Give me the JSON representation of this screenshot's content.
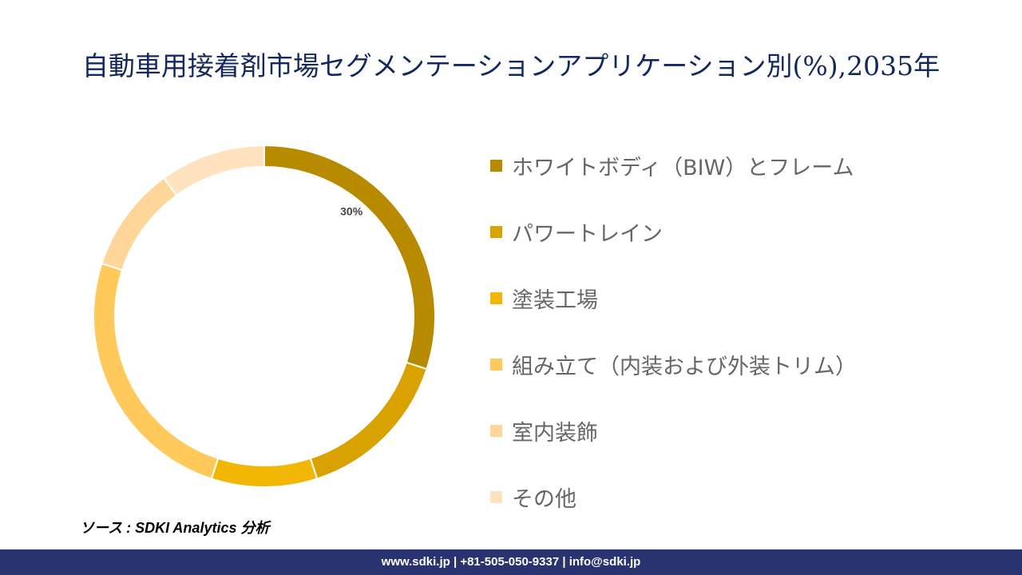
{
  "chart_data": {
    "type": "pie",
    "title": "自動車用接着剤市場セグメンテーションアプリケーション別(%),2035年",
    "donut": true,
    "categories": [
      "ホワイトボディ（BIW）とフレーム",
      "パワートレイン",
      "塗装工場",
      "組み立て（内装および外装トリム）",
      "室内装飾",
      "その他"
    ],
    "values": [
      30,
      15,
      10,
      25,
      10,
      10
    ],
    "colors": [
      "#B88A00",
      "#D9A200",
      "#F2B705",
      "#FFC95C",
      "#FFD699",
      "#FFE3C0"
    ],
    "data_labels": [
      "30%",
      "",
      "",
      "",
      "",
      ""
    ],
    "legend_position": "right"
  },
  "source": "ソース : SDKI Analytics 分析",
  "footer": "www.sdki.jp | +81-505-050-9337 | info@sdki.jp"
}
